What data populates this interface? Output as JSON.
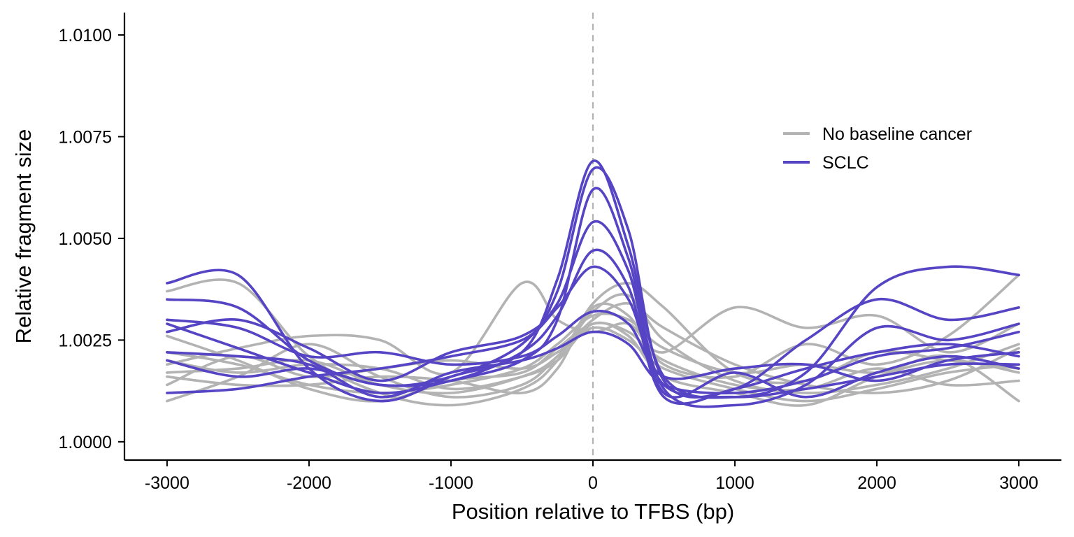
{
  "chart_data": {
    "type": "line",
    "title": "",
    "xlabel": "Position relative to TFBS (bp)",
    "ylabel": "Relative fragment size",
    "xlim": [
      -3300,
      3300
    ],
    "ylim": [
      0.99955,
      1.01055
    ],
    "x_ticks": [
      -3000,
      -2000,
      -1000,
      0,
      1000,
      2000,
      3000
    ],
    "x_tick_labels": [
      "-3000",
      "-2000",
      "-1000",
      "0",
      "1000",
      "2000",
      "3000"
    ],
    "y_ticks": [
      1.0,
      1.0025,
      1.005,
      1.0075,
      1.01
    ],
    "y_tick_labels": [
      "1.0000",
      "1.0025",
      "1.0050",
      "1.0075",
      "1.0100"
    ],
    "grid": false,
    "reference_line": {
      "x": 0,
      "style": "dashed",
      "color": "#b3b3b3"
    },
    "legend": {
      "position": "top-right",
      "entries": [
        {
          "label": "No baseline cancer",
          "color": "#b3b3b3"
        },
        {
          "label": "SCLC",
          "color": "#5544c4"
        }
      ]
    },
    "x": [
      -3000,
      -2500,
      -2000,
      -1500,
      -1000,
      -500,
      -250,
      0,
      250,
      500,
      1000,
      1500,
      2000,
      2500,
      3000
    ],
    "series": [
      {
        "group": "No baseline cancer",
        "color": "#b3b3b3",
        "values": [
          1.001,
          1.0016,
          1.0024,
          1.0016,
          1.0011,
          1.0014,
          1.0021,
          1.003,
          1.0034,
          1.0028,
          1.0019,
          1.0014,
          1.0012,
          1.0015,
          1.0023
        ]
      },
      {
        "group": "No baseline cancer",
        "color": "#b3b3b3",
        "values": [
          1.0022,
          1.0019,
          1.0014,
          1.0012,
          1.0014,
          1.0018,
          1.0024,
          1.0031,
          1.003,
          1.0023,
          1.0017,
          1.0019,
          1.0017,
          1.0021,
          1.001
        ]
      },
      {
        "group": "No baseline cancer",
        "color": "#b3b3b3",
        "values": [
          1.0037,
          1.0039,
          1.0021,
          1.0012,
          1.0009,
          1.0013,
          1.002,
          1.0034,
          1.0039,
          1.0033,
          1.0017,
          1.0015,
          1.0022,
          1.002,
          1.0018
        ]
      },
      {
        "group": "No baseline cancer",
        "color": "#b3b3b3",
        "values": [
          1.0017,
          1.0018,
          1.002,
          1.0014,
          1.0012,
          1.0016,
          1.0021,
          1.0032,
          1.0036,
          1.0025,
          1.0015,
          1.0012,
          1.0014,
          1.0018,
          1.0024
        ]
      },
      {
        "group": "No baseline cancer",
        "color": "#b3b3b3",
        "values": [
          1.0014,
          1.0021,
          1.0016,
          1.0018,
          1.002,
          1.0018,
          1.0022,
          1.0028,
          1.0025,
          1.0018,
          1.0013,
          1.001,
          1.0013,
          1.0017,
          1.0019
        ]
      },
      {
        "group": "No baseline cancer",
        "color": "#b3b3b3",
        "values": [
          1.0019,
          1.0023,
          1.0026,
          1.0025,
          1.0017,
          1.0039,
          1.003,
          1.0027,
          1.0029,
          1.0022,
          1.0033,
          1.0028,
          1.0031,
          1.0022,
          1.0029
        ]
      },
      {
        "group": "No baseline cancer",
        "color": "#b3b3b3",
        "values": [
          1.0026,
          1.002,
          1.0013,
          1.001,
          1.0015,
          1.0017,
          1.0023,
          1.0029,
          1.0027,
          1.002,
          1.0014,
          1.0013,
          1.0018,
          1.0014,
          1.0015
        ]
      },
      {
        "group": "No baseline cancer",
        "color": "#b3b3b3",
        "values": [
          1.0016,
          1.0014,
          1.0014,
          1.0016,
          1.0015,
          1.0012,
          1.0018,
          1.0033,
          1.0031,
          1.0019,
          1.0016,
          1.0024,
          1.0019,
          1.0026,
          1.0041
        ]
      },
      {
        "group": "No baseline cancer",
        "color": "#b3b3b3",
        "values": [
          1.002,
          1.0017,
          1.0019,
          1.0018,
          1.0013,
          1.0016,
          1.002,
          1.0029,
          1.0026,
          1.0016,
          1.0012,
          1.0009,
          1.0016,
          1.002,
          1.0017
        ]
      },
      {
        "group": "SCLC",
        "color": "#5544c4",
        "values": [
          1.0039,
          1.0041,
          1.0018,
          1.001,
          1.0016,
          1.0022,
          1.004,
          1.0069,
          1.0048,
          1.0016,
          1.0011,
          1.0017,
          1.0038,
          1.0043,
          1.0041
        ]
      },
      {
        "group": "SCLC",
        "color": "#5544c4",
        "values": [
          1.0035,
          1.0033,
          1.002,
          1.0014,
          1.0016,
          1.0024,
          1.0037,
          1.0067,
          1.0052,
          1.0015,
          1.0013,
          1.0025,
          1.0035,
          1.003,
          1.0033
        ]
      },
      {
        "group": "SCLC",
        "color": "#5544c4",
        "values": [
          1.0029,
          1.0023,
          1.0017,
          1.0012,
          1.0015,
          1.002,
          1.003,
          1.0062,
          1.0045,
          1.0013,
          1.0009,
          1.0014,
          1.0028,
          1.0025,
          1.0029
        ]
      },
      {
        "group": "SCLC",
        "color": "#5544c4",
        "values": [
          1.0027,
          1.003,
          1.0023,
          1.0015,
          1.0022,
          1.0026,
          1.0034,
          1.0054,
          1.0042,
          1.0012,
          1.0017,
          1.0011,
          1.0017,
          1.0021,
          1.0018
        ]
      },
      {
        "group": "SCLC",
        "color": "#5544c4",
        "values": [
          1.002,
          1.0016,
          1.0018,
          1.0014,
          1.0015,
          1.0022,
          1.0031,
          1.0047,
          1.0038,
          1.0011,
          1.0013,
          1.0018,
          1.0022,
          1.0024,
          1.0021
        ]
      },
      {
        "group": "SCLC",
        "color": "#5544c4",
        "values": [
          1.0012,
          1.0013,
          1.0016,
          1.0018,
          1.0021,
          1.0025,
          1.0033,
          1.0043,
          1.0035,
          1.0014,
          1.0011,
          1.0013,
          1.0016,
          1.0019,
          1.0019
        ]
      },
      {
        "group": "SCLC",
        "color": "#5544c4",
        "values": [
          1.003,
          1.0028,
          1.0021,
          1.0022,
          1.0019,
          1.0021,
          1.0026,
          1.0032,
          1.0029,
          1.0016,
          1.0018,
          1.0019,
          1.0015,
          1.002,
          1.0022
        ]
      },
      {
        "group": "SCLC",
        "color": "#5544c4",
        "values": [
          1.0022,
          1.0021,
          1.0019,
          1.0011,
          1.0017,
          1.002,
          1.0023,
          1.0027,
          1.0024,
          1.0014,
          1.0012,
          1.0015,
          1.0021,
          1.0023,
          1.0027
        ]
      }
    ]
  }
}
